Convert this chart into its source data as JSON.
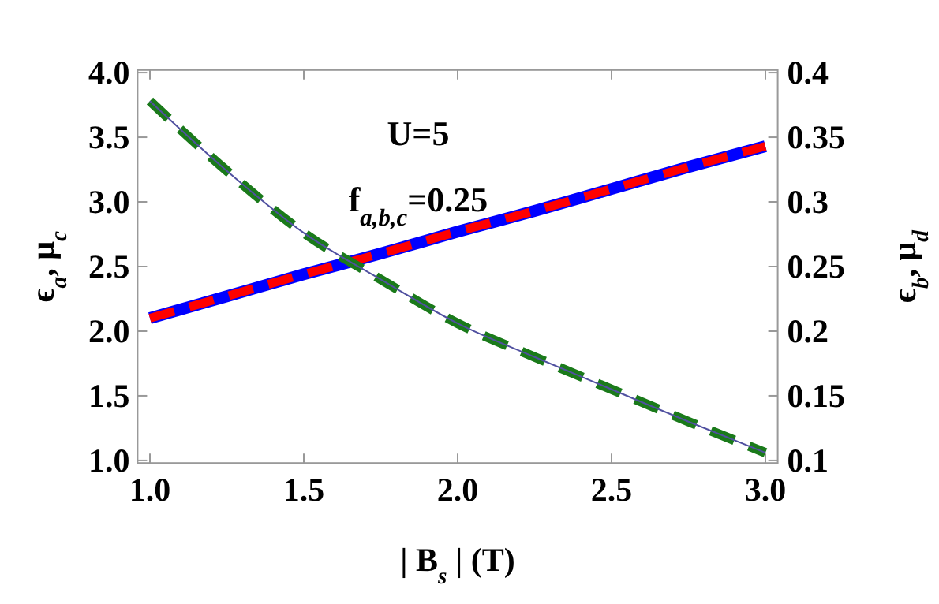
{
  "chart_data": {
    "type": "line",
    "xlabel": "| B$_{s}$ | (T)",
    "ylabel": "ϵ$_{a}$, μ$_{c}$",
    "y2label": "ϵ$_{b}$, μ$_{d}$",
    "x": [
      1,
      1.25,
      1.5,
      1.75,
      2,
      2.25,
      2.5,
      2.75,
      3
    ],
    "xlim": [
      0.96,
      3.04
    ],
    "ylim": [
      0.98,
      4.02
    ],
    "y2lim": [
      0.098,
      0.402
    ],
    "xticks": [
      {
        "value": 1,
        "label": "1.0"
      },
      1.5,
      {
        "value": 2,
        "label": "2.0"
      },
      2.5,
      {
        "value": 3,
        "label": "3.0"
      }
    ],
    "yticks": [
      {
        "value": 1,
        "label": "1.0"
      },
      1.5,
      {
        "value": 2,
        "label": "2.0"
      },
      2.5,
      {
        "value": 3,
        "label": "3.0"
      },
      3.5,
      {
        "value": 4,
        "label": "4.0"
      }
    ],
    "y2ticks": [
      0.1,
      0.15,
      0.2,
      0.25,
      0.3,
      0.35,
      0.4
    ],
    "annotations": [
      "U=5",
      "f$_{a,b,c}$=0.25"
    ],
    "series": [
      {
        "color": "#0000ff",
        "line_style": "solid",
        "values": [
          2.1,
          2.27,
          2.44,
          2.6,
          2.77,
          2.93,
          3.1,
          3.27,
          3.43
        ]
      },
      {
        "color": "#ff0000",
        "line_style": "dashed",
        "values": [
          2.1,
          2.27,
          2.44,
          2.6,
          2.77,
          2.93,
          3.1,
          3.27,
          3.43
        ]
      },
      {
        "color": "#1a7a1a",
        "line_style": "dashed",
        "axis": "y2",
        "values": [
          0.378,
          0.324,
          0.276,
          0.24,
          0.206,
          0.18,
          0.155,
          0.13,
          0.106
        ]
      },
      {
        "color": "#5050a0",
        "line_style": "solid",
        "axis": "y2",
        "values": [
          0.378,
          0.324,
          0.276,
          0.24,
          0.206,
          0.18,
          0.155,
          0.13,
          0.106
        ]
      }
    ]
  }
}
